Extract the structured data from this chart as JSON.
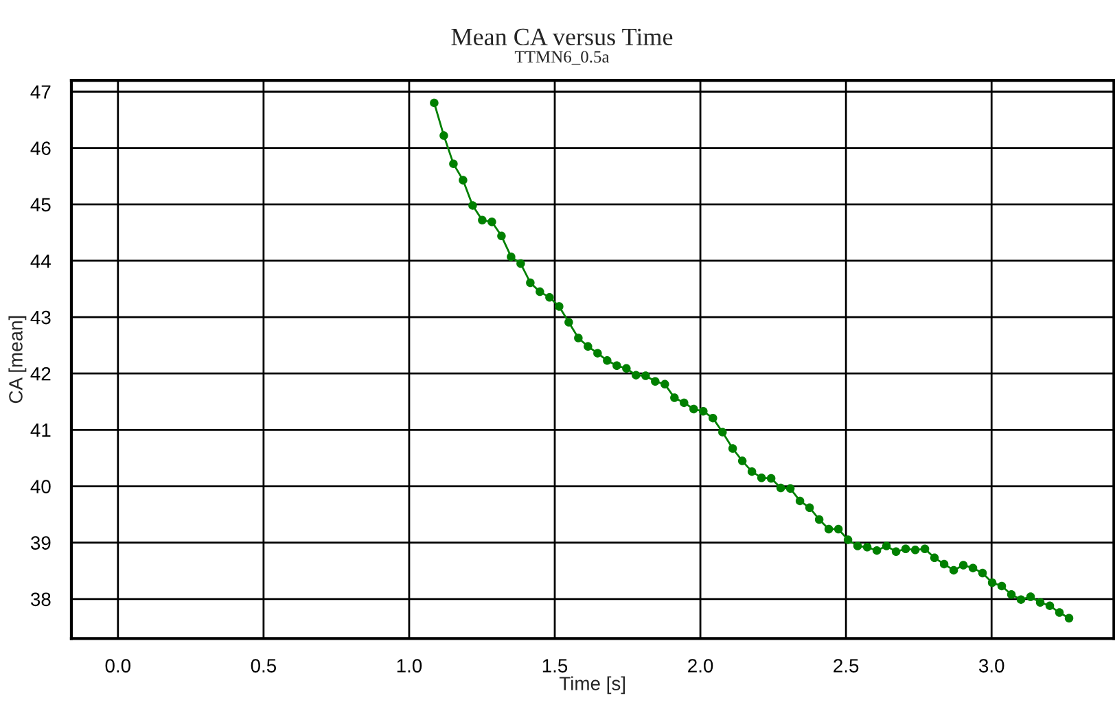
{
  "chart_data": {
    "type": "line",
    "title": "Mean CA versus Time",
    "subtitle": "TTMN6_0.5a",
    "xlabel": "Time [s]",
    "ylabel": "CA [mean]",
    "x": [
      1.086,
      1.119,
      1.152,
      1.185,
      1.218,
      1.251,
      1.284,
      1.317,
      1.35,
      1.383,
      1.416,
      1.449,
      1.482,
      1.515,
      1.548,
      1.581,
      1.614,
      1.647,
      1.68,
      1.713,
      1.746,
      1.779,
      1.812,
      1.845,
      1.878,
      1.911,
      1.944,
      1.977,
      2.01,
      2.043,
      2.076,
      2.111,
      2.144,
      2.177,
      2.21,
      2.243,
      2.276,
      2.309,
      2.342,
      2.375,
      2.408,
      2.441,
      2.474,
      2.507,
      2.54,
      2.573,
      2.606,
      2.639,
      2.672,
      2.705,
      2.738,
      2.771,
      2.804,
      2.837,
      2.87,
      2.903,
      2.936,
      2.969,
      3.002,
      3.035,
      3.068,
      3.101,
      3.134,
      3.167,
      3.2,
      3.233,
      3.266
    ],
    "series": [
      {
        "color": "#008000",
        "values": [
          46.8,
          46.22,
          45.72,
          45.43,
          44.98,
          44.72,
          44.69,
          44.44,
          44.07,
          43.95,
          43.61,
          43.45,
          43.35,
          43.19,
          42.91,
          42.63,
          42.48,
          42.36,
          42.23,
          42.14,
          42.09,
          41.97,
          41.96,
          41.86,
          41.81,
          41.57,
          41.48,
          41.37,
          41.33,
          41.21,
          40.96,
          40.67,
          40.45,
          40.26,
          40.15,
          40.14,
          39.97,
          39.96,
          39.74,
          39.62,
          39.41,
          39.24,
          39.24,
          39.05,
          38.94,
          38.92,
          38.86,
          38.94,
          38.84,
          38.89,
          38.87,
          38.89,
          38.73,
          38.62,
          38.51,
          38.6,
          38.55,
          38.46,
          38.29,
          38.23,
          38.08,
          37.99,
          38.04,
          37.94,
          37.88,
          37.76,
          37.66
        ]
      }
    ],
    "xlim": [
      -0.16,
      3.42
    ],
    "ylim": [
      37.3,
      47.2
    ],
    "xticks": [
      {
        "value": 0,
        "label": "0.0"
      },
      0.5,
      {
        "value": 1,
        "label": "1.0"
      },
      1.5,
      {
        "value": 2,
        "label": "2.0"
      },
      2.5,
      {
        "value": 3,
        "label": "3.0"
      }
    ],
    "yticks": [
      38,
      39,
      40,
      41,
      42,
      43,
      44,
      45,
      46,
      47
    ],
    "grid": true,
    "marker": "circle",
    "line_style": "solid"
  }
}
